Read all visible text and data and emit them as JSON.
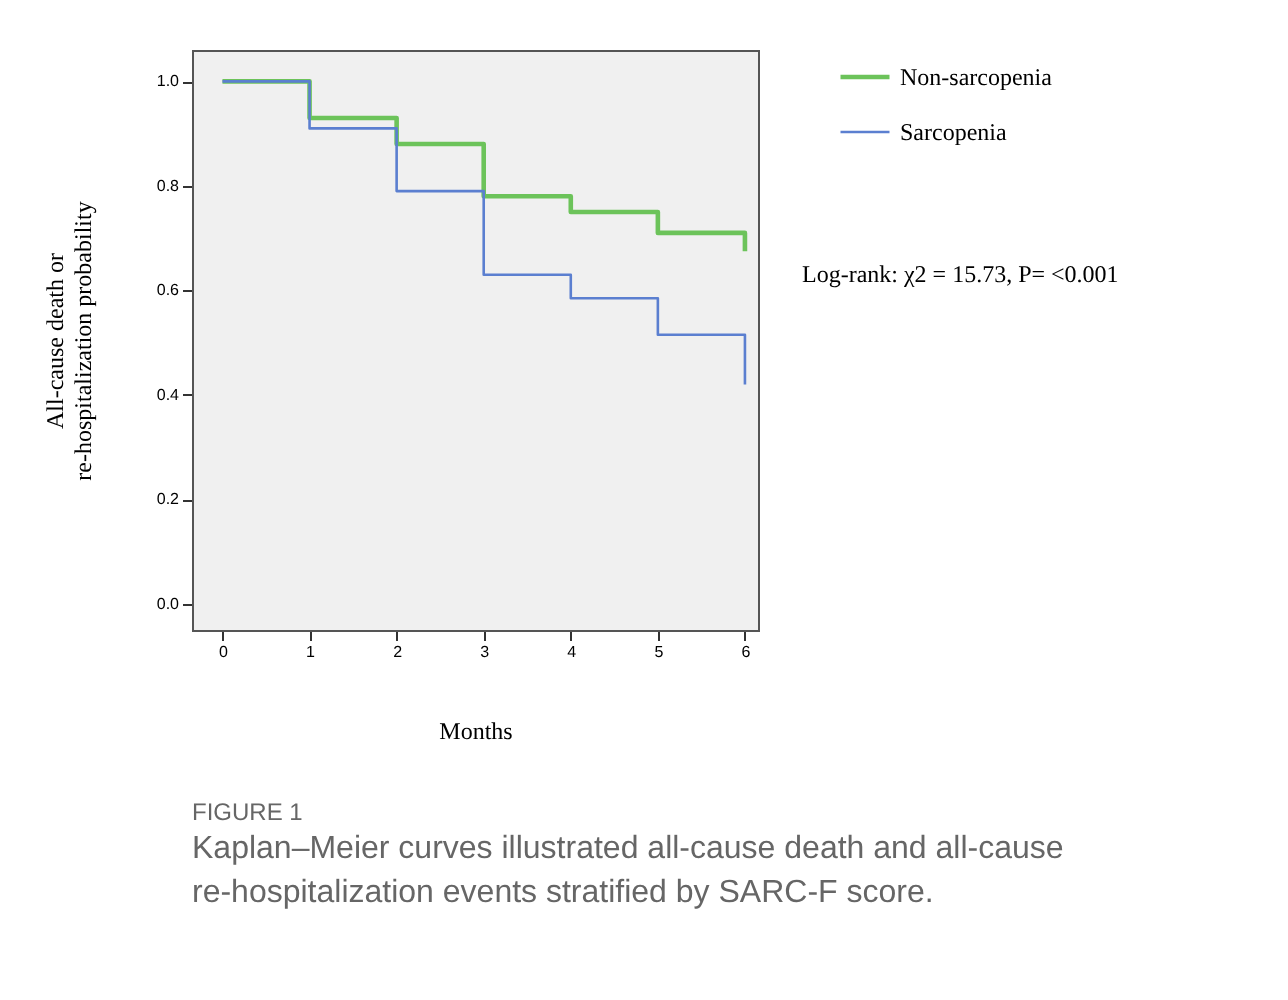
{
  "chart_data": {
    "type": "step",
    "title": "FIGURE 1",
    "subtitle": "Kaplan–Meier curves illustrated all-cause death and all-cause re-hospitalization events stratified by SARC-F score.",
    "xlabel": "Months",
    "ylabel": "All-cause death or\nre-hospitalization probability",
    "x": [
      0,
      1,
      2,
      3,
      4,
      5,
      6,
      6
    ],
    "series": [
      {
        "name": "Non-sarcopenia",
        "color": "#6cc35a",
        "values": [
          1.0,
          0.93,
          0.88,
          0.78,
          0.75,
          0.71,
          0.71,
          0.675
        ]
      },
      {
        "name": "Sarcopenia",
        "color": "#5b7fd0",
        "values": [
          1.0,
          0.91,
          0.79,
          0.63,
          0.585,
          0.515,
          0.515,
          0.42
        ]
      }
    ],
    "xlim": [
      -0.35,
      6.15
    ],
    "xticks": [
      0,
      1,
      2,
      3,
      4,
      5,
      6
    ],
    "ylim": [
      -0.05,
      1.06
    ],
    "yticks": [
      {
        "value": 0,
        "label": "0.0"
      },
      {
        "value": 0.2,
        "label": "0.2"
      },
      {
        "value": 0.4,
        "label": "0.4"
      },
      {
        "value": 0.6,
        "label": "0.6"
      },
      {
        "value": 0.8,
        "label": "0.8"
      },
      {
        "value": 1,
        "label": "1.0"
      }
    ],
    "grid": false,
    "legend": "top right",
    "annotations": [
      "Log-rank: χ2 = 15.73, P= <0.001"
    ]
  }
}
